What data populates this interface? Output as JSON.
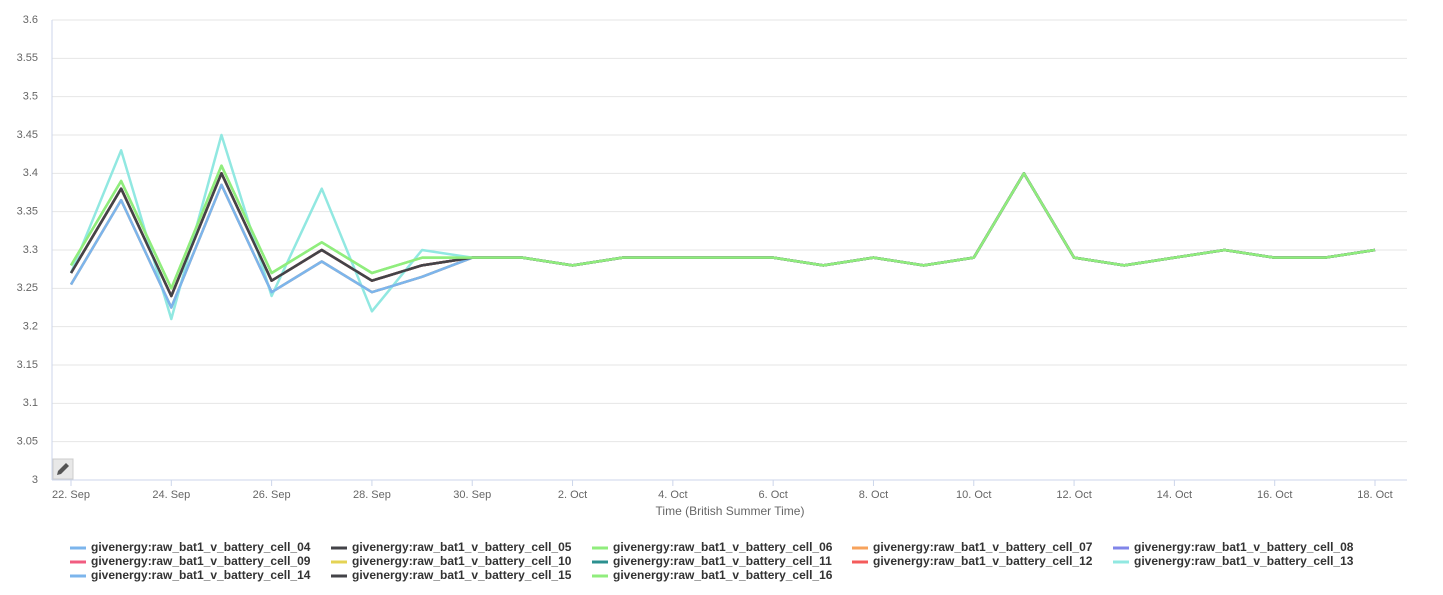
{
  "chart_data": {
    "type": "line",
    "x_label": "Time (British Summer Time)",
    "categories": [
      "22. Sep",
      null,
      "24. Sep",
      null,
      "26. Sep",
      null,
      "28. Sep",
      null,
      "30. Sep",
      null,
      "2. Oct",
      null,
      "4. Oct",
      null,
      "6. Oct",
      null,
      "8. Oct",
      null,
      "10. Oct",
      null,
      "12. Oct",
      null,
      "14. Oct",
      null,
      "16. Oct",
      null,
      "18. Oct"
    ],
    "ylim": [
      3,
      3.6
    ],
    "yticks": [
      3,
      3.05,
      3.1,
      3.15,
      3.2,
      3.25,
      3.3,
      3.35,
      3.4,
      3.45,
      3.5,
      3.55,
      3.6
    ],
    "grid": true,
    "legend": "bottom",
    "series": [
      {
        "name": "givenergy:raw_bat1_v_battery_cell_04",
        "color": "#7cb5ec",
        "values": [
          3.255,
          3.365,
          3.225,
          3.385,
          3.245,
          3.285,
          3.245,
          3.265,
          3.29,
          3.29,
          3.28,
          3.29,
          3.29,
          3.29,
          3.29,
          3.28,
          3.29,
          3.28,
          3.29,
          3.4,
          3.29,
          3.28,
          3.29,
          3.3,
          3.29,
          3.29,
          3.3
        ]
      },
      {
        "name": "givenergy:raw_bat1_v_battery_cell_05",
        "color": "#434348",
        "values": [
          3.27,
          3.38,
          3.24,
          3.4,
          3.26,
          3.3,
          3.26,
          3.28,
          3.29,
          3.29,
          3.28,
          3.29,
          3.29,
          3.29,
          3.29,
          3.28,
          3.29,
          3.28,
          3.29,
          3.4,
          3.29,
          3.28,
          3.29,
          3.3,
          3.29,
          3.29,
          3.3
        ]
      },
      {
        "name": "givenergy:raw_bat1_v_battery_cell_06",
        "color": "#90ed7d",
        "values": [
          3.28,
          3.39,
          3.25,
          3.41,
          3.27,
          3.31,
          3.27,
          3.29,
          3.29,
          3.29,
          3.28,
          3.29,
          3.29,
          3.29,
          3.29,
          3.28,
          3.29,
          3.28,
          3.29,
          3.4,
          3.29,
          3.28,
          3.29,
          3.3,
          3.29,
          3.29,
          3.3
        ]
      },
      {
        "name": "givenergy:raw_bat1_v_battery_cell_07",
        "color": "#f7a35c",
        "values": [
          3.255,
          3.365,
          3.225,
          3.385,
          3.245,
          3.285,
          3.245,
          3.265,
          3.29,
          3.29,
          3.28,
          3.29,
          3.29,
          3.29,
          3.29,
          3.28,
          3.29,
          3.28,
          3.29,
          3.4,
          3.29,
          3.28,
          3.29,
          3.3,
          3.29,
          3.29,
          3.3
        ]
      },
      {
        "name": "givenergy:raw_bat1_v_battery_cell_08",
        "color": "#8085e9",
        "values": [
          3.27,
          3.38,
          3.24,
          3.4,
          3.26,
          3.3,
          3.26,
          3.28,
          3.29,
          3.29,
          3.28,
          3.29,
          3.29,
          3.29,
          3.29,
          3.28,
          3.29,
          3.28,
          3.29,
          3.4,
          3.29,
          3.28,
          3.29,
          3.3,
          3.29,
          3.29,
          3.3
        ]
      },
      {
        "name": "givenergy:raw_bat1_v_battery_cell_09",
        "color": "#f15c80",
        "values": [
          3.27,
          3.38,
          3.24,
          3.4,
          3.26,
          3.3,
          3.26,
          3.28,
          3.29,
          3.29,
          3.28,
          3.29,
          3.29,
          3.29,
          3.29,
          3.28,
          3.29,
          3.28,
          3.29,
          3.4,
          3.29,
          3.28,
          3.29,
          3.3,
          3.29,
          3.29,
          3.3
        ]
      },
      {
        "name": "givenergy:raw_bat1_v_battery_cell_10",
        "color": "#e4d354",
        "values": [
          3.27,
          3.38,
          3.24,
          3.4,
          3.26,
          3.3,
          3.26,
          3.28,
          3.29,
          3.29,
          3.28,
          3.29,
          3.29,
          3.29,
          3.29,
          3.28,
          3.29,
          3.28,
          3.29,
          3.4,
          3.29,
          3.28,
          3.29,
          3.3,
          3.29,
          3.29,
          3.3
        ]
      },
      {
        "name": "givenergy:raw_bat1_v_battery_cell_11",
        "color": "#2b908f",
        "values": [
          3.27,
          3.38,
          3.24,
          3.4,
          3.26,
          3.3,
          3.26,
          3.28,
          3.29,
          3.29,
          3.28,
          3.29,
          3.29,
          3.29,
          3.29,
          3.28,
          3.29,
          3.28,
          3.29,
          3.4,
          3.29,
          3.28,
          3.29,
          3.3,
          3.29,
          3.29,
          3.3
        ]
      },
      {
        "name": "givenergy:raw_bat1_v_battery_cell_12",
        "color": "#f45b5b",
        "values": [
          3.27,
          3.38,
          3.24,
          3.4,
          3.26,
          3.3,
          3.26,
          3.28,
          3.29,
          3.29,
          3.28,
          3.29,
          3.29,
          3.29,
          3.29,
          3.28,
          3.29,
          3.28,
          3.29,
          3.4,
          3.29,
          3.28,
          3.29,
          3.3,
          3.29,
          3.29,
          3.3
        ]
      },
      {
        "name": "givenergy:raw_bat1_v_battery_cell_13",
        "color": "#91e8e1",
        "values": [
          3.27,
          3.43,
          3.21,
          3.45,
          3.24,
          3.38,
          3.22,
          3.3,
          3.29,
          3.29,
          3.28,
          3.29,
          3.29,
          3.29,
          3.29,
          3.28,
          3.29,
          3.28,
          3.29,
          3.4,
          3.29,
          3.28,
          3.29,
          3.3,
          3.29,
          3.29,
          3.3
        ]
      },
      {
        "name": "givenergy:raw_bat1_v_battery_cell_14",
        "color": "#7cb5ec",
        "values": [
          3.255,
          3.365,
          3.225,
          3.385,
          3.245,
          3.285,
          3.245,
          3.265,
          3.29,
          3.29,
          3.28,
          3.29,
          3.29,
          3.29,
          3.29,
          3.28,
          3.29,
          3.28,
          3.29,
          3.4,
          3.29,
          3.28,
          3.29,
          3.3,
          3.29,
          3.29,
          3.3
        ]
      },
      {
        "name": "givenergy:raw_bat1_v_battery_cell_15",
        "color": "#434348",
        "values": [
          3.27,
          3.38,
          3.24,
          3.4,
          3.26,
          3.3,
          3.26,
          3.28,
          3.29,
          3.29,
          3.28,
          3.29,
          3.29,
          3.29,
          3.29,
          3.28,
          3.29,
          3.28,
          3.29,
          3.4,
          3.29,
          3.28,
          3.29,
          3.3,
          3.29,
          3.29,
          3.3
        ]
      },
      {
        "name": "givenergy:raw_bat1_v_battery_cell_16",
        "color": "#90ed7d",
        "values": [
          3.28,
          3.39,
          3.25,
          3.41,
          3.27,
          3.31,
          3.27,
          3.29,
          3.29,
          3.29,
          3.28,
          3.29,
          3.29,
          3.29,
          3.29,
          3.28,
          3.29,
          3.28,
          3.29,
          3.4,
          3.29,
          3.28,
          3.29,
          3.3,
          3.29,
          3.29,
          3.3
        ]
      }
    ]
  }
}
